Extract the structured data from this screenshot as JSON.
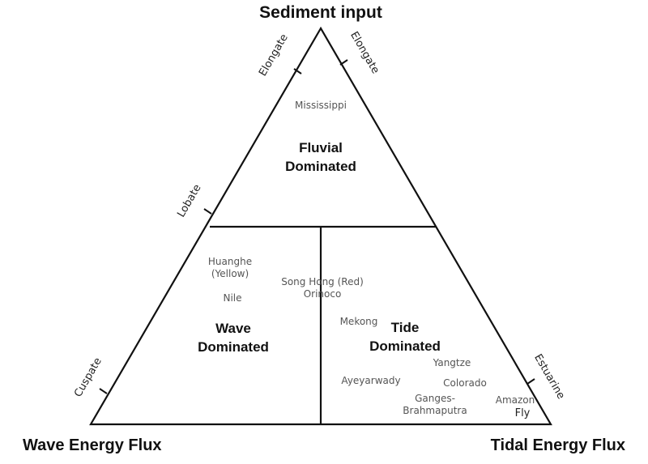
{
  "corners": {
    "top": "Sediment input",
    "bottom_left": "Wave Energy Flux",
    "bottom_right": "Tidal Energy Flux"
  },
  "regions": {
    "fluvial": [
      "Fluvial",
      "Dominated"
    ],
    "wave": [
      "Wave",
      "Dominated"
    ],
    "tide": [
      "Tide",
      "Dominated"
    ]
  },
  "edge_labels": {
    "left_top": "Elongate",
    "left_mid": "Lobate",
    "left_bottom": "Cuspate",
    "right_top": "Elongate",
    "right_bottom": "Estuarine"
  },
  "rivers": {
    "mississippi": "Mississippi",
    "huanghe_1": "Huanghe",
    "huanghe_2": "(Yellow)",
    "nile": "Nile",
    "song_hong": "Song Hong (Red)",
    "orinoco": "Orinoco",
    "mekong": "Mekong",
    "yangtze": "Yangtze",
    "ayeyarwady": "Ayeyarwady",
    "colorado": "Colorado",
    "ganges_1": "Ganges-",
    "ganges_2": "Brahmaputra",
    "amazon": "Amazon",
    "fly": "Fly"
  }
}
